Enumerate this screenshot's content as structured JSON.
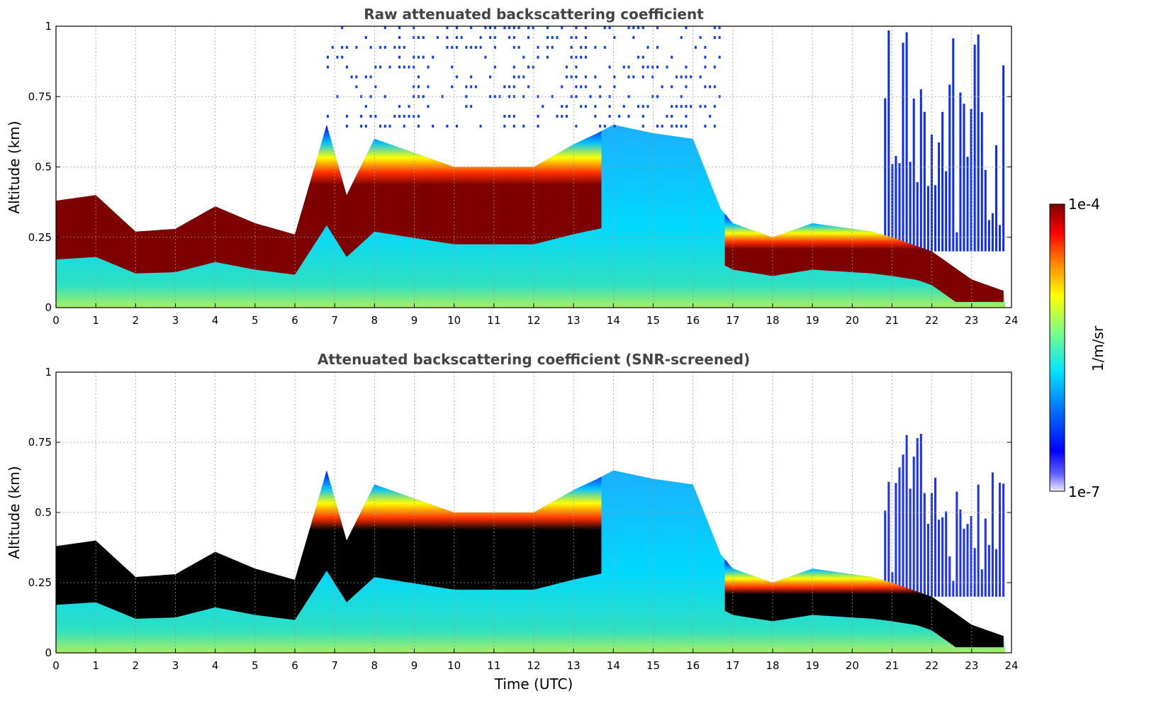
{
  "chart_data": [
    {
      "type": "heatmap",
      "title": "Raw attenuated backscattering coefficient",
      "xlabel": "",
      "ylabel": "Altitude (km)",
      "xlim": [
        0,
        24
      ],
      "ylim": [
        0,
        1
      ],
      "xticks": [
        "0",
        "1",
        "2",
        "3",
        "4",
        "5",
        "6",
        "7",
        "8",
        "9",
        "10",
        "11",
        "12",
        "13",
        "14",
        "15",
        "16",
        "17",
        "18",
        "19",
        "20",
        "21",
        "22",
        "23",
        "24"
      ],
      "yticks": [
        "0",
        "0.25",
        "0.5",
        "0.75",
        "1"
      ],
      "grid": true,
      "layer_top_km": {
        "time_utc": [
          0,
          1,
          2,
          3,
          4,
          5,
          6,
          6.8,
          7.3,
          8,
          9,
          10,
          11,
          12,
          13,
          13.6,
          14,
          15,
          16,
          16.7,
          17,
          18,
          19,
          20,
          20.5,
          21,
          22,
          23,
          24
        ],
        "values": [
          0.38,
          0.4,
          0.27,
          0.28,
          0.36,
          0.3,
          0.26,
          0.65,
          0.4,
          0.6,
          0.55,
          0.5,
          0.5,
          0.5,
          0.58,
          0.62,
          0.65,
          0.62,
          0.6,
          0.35,
          0.3,
          0.25,
          0.3,
          0.28,
          0.27,
          0.25,
          0.2,
          0.1,
          0.05
        ]
      }
    },
    {
      "type": "heatmap",
      "title": "Attenuated backscattering coefficient (SNR-screened)",
      "xlabel": "Time (UTC)",
      "ylabel": "Altitude (km)",
      "xlim": [
        0,
        24
      ],
      "ylim": [
        0,
        1
      ],
      "xticks": [
        "0",
        "1",
        "2",
        "3",
        "4",
        "5",
        "6",
        "7",
        "8",
        "9",
        "10",
        "11",
        "12",
        "13",
        "14",
        "15",
        "16",
        "17",
        "18",
        "19",
        "20",
        "21",
        "22",
        "23",
        "24"
      ],
      "yticks": [
        "0",
        "0.25",
        "0.5",
        "0.75",
        "1"
      ],
      "grid": true
    }
  ],
  "colorbar": {
    "label": "1/m/sr",
    "max_label": "1e-4",
    "min_label": "1e-7",
    "colormap": "jet",
    "stops": [
      "#e8e8ff",
      "#0000ff",
      "#0080ff",
      "#00e5ff",
      "#7fff7f",
      "#ffff00",
      "#ff8000",
      "#ff0000",
      "#7f0000"
    ]
  }
}
